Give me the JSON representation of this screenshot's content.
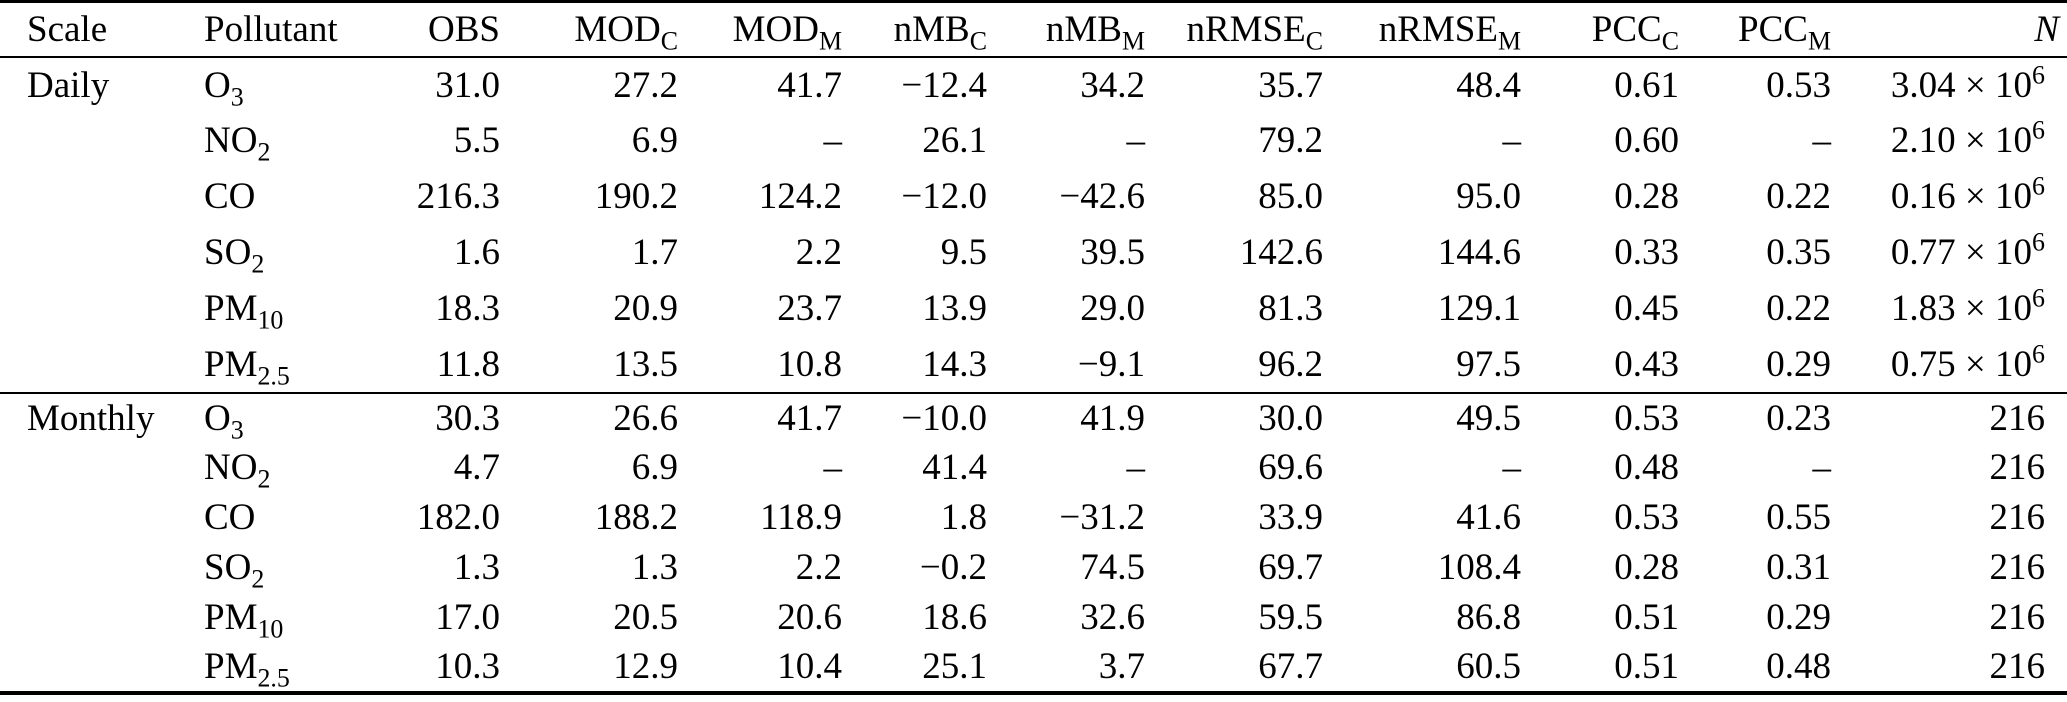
{
  "table": {
    "header": [
      "Scale",
      "Pollutant",
      "OBS",
      "MOD_C",
      "MOD_M",
      "nMB_C",
      "nMB_M",
      "nRMSE_C",
      "nRMSE_M",
      "PCC_C",
      "PCC_M",
      "N"
    ],
    "missing_marker": "–",
    "sections": [
      {
        "scale": "Daily",
        "rows": [
          {
            "pollutant": "O_3",
            "values": [
              "31.0",
              "27.2",
              "41.7",
              "−12.4",
              "34.2",
              "35.7",
              "48.4",
              "0.61",
              "0.53",
              "3.04 × 10^6"
            ]
          },
          {
            "pollutant": "NO_2",
            "values": [
              "5.5",
              "6.9",
              "–",
              "26.1",
              "–",
              "79.2",
              "–",
              "0.60",
              "–",
              "2.10 × 10^6"
            ]
          },
          {
            "pollutant": "CO",
            "values": [
              "216.3",
              "190.2",
              "124.2",
              "−12.0",
              "−42.6",
              "85.0",
              "95.0",
              "0.28",
              "0.22",
              "0.16 × 10^6"
            ]
          },
          {
            "pollutant": "SO_2",
            "values": [
              "1.6",
              "1.7",
              "2.2",
              "9.5",
              "39.5",
              "142.6",
              "144.6",
              "0.33",
              "0.35",
              "0.77 × 10^6"
            ]
          },
          {
            "pollutant": "PM_10",
            "values": [
              "18.3",
              "20.9",
              "23.7",
              "13.9",
              "29.0",
              "81.3",
              "129.1",
              "0.45",
              "0.22",
              "1.83 × 10^6"
            ]
          },
          {
            "pollutant": "PM_2.5",
            "values": [
              "11.8",
              "13.5",
              "10.8",
              "14.3",
              "−9.1",
              "96.2",
              "97.5",
              "0.43",
              "0.29",
              "0.75 × 10^6"
            ]
          }
        ]
      },
      {
        "scale": "Monthly",
        "rows": [
          {
            "pollutant": "O_3",
            "values": [
              "30.3",
              "26.6",
              "41.7",
              "−10.0",
              "41.9",
              "30.0",
              "49.5",
              "0.53",
              "0.23",
              "216"
            ]
          },
          {
            "pollutant": "NO_2",
            "values": [
              "4.7",
              "6.9",
              "–",
              "41.4",
              "–",
              "69.6",
              "–",
              "0.48",
              "–",
              "216"
            ]
          },
          {
            "pollutant": "CO",
            "values": [
              "182.0",
              "188.2",
              "118.9",
              "1.8",
              "−31.2",
              "33.9",
              "41.6",
              "0.53",
              "0.55",
              "216"
            ]
          },
          {
            "pollutant": "SO_2",
            "values": [
              "1.3",
              "1.3",
              "2.2",
              "−0.2",
              "74.5",
              "69.7",
              "108.4",
              "0.28",
              "0.31",
              "216"
            ]
          },
          {
            "pollutant": "PM_10",
            "values": [
              "17.0",
              "20.5",
              "20.6",
              "18.6",
              "32.6",
              "59.5",
              "86.8",
              "0.51",
              "0.29",
              "216"
            ]
          },
          {
            "pollutant": "PM_2.5",
            "values": [
              "10.3",
              "12.9",
              "10.4",
              "25.1",
              "3.7",
              "67.7",
              "60.5",
              "0.51",
              "0.48",
              "216"
            ]
          }
        ]
      }
    ]
  }
}
